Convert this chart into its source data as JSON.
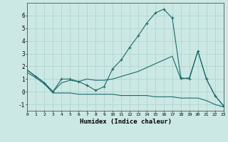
{
  "xlabel": "Humidex (Indice chaleur)",
  "background_color": "#cce8e4",
  "grid_color": "#b0d4cf",
  "line_color": "#1a6b6b",
  "series1_x": [
    0,
    1,
    2,
    3,
    4,
    5,
    6,
    7,
    8,
    9,
    10,
    11,
    12,
    13,
    14,
    15,
    16,
    17,
    18,
    19,
    20,
    21,
    22,
    23
  ],
  "series1_y": [
    1.7,
    1.2,
    0.7,
    0.0,
    1.0,
    1.0,
    0.8,
    0.5,
    0.1,
    0.4,
    1.8,
    2.5,
    3.5,
    4.4,
    5.4,
    6.2,
    6.5,
    5.8,
    1.1,
    1.0,
    3.2,
    1.0,
    -0.3,
    -1.1
  ],
  "series2_x": [
    0,
    1,
    2,
    3,
    4,
    5,
    6,
    7,
    8,
    9,
    10,
    11,
    12,
    13,
    14,
    15,
    16,
    17,
    18,
    19,
    20,
    21,
    22,
    23
  ],
  "series2_y": [
    1.7,
    1.2,
    0.7,
    0.0,
    0.7,
    0.9,
    0.8,
    1.0,
    0.9,
    0.9,
    1.0,
    1.2,
    1.4,
    1.6,
    1.9,
    2.2,
    2.5,
    2.8,
    1.0,
    1.1,
    3.2,
    1.0,
    -0.3,
    -1.1
  ],
  "series3_x": [
    0,
    1,
    2,
    3,
    4,
    5,
    6,
    7,
    8,
    9,
    10,
    11,
    12,
    13,
    14,
    15,
    16,
    17,
    18,
    19,
    20,
    21,
    22,
    23
  ],
  "series3_y": [
    1.5,
    1.1,
    0.6,
    -0.1,
    -0.1,
    -0.1,
    -0.2,
    -0.2,
    -0.2,
    -0.2,
    -0.2,
    -0.3,
    -0.3,
    -0.3,
    -0.3,
    -0.4,
    -0.4,
    -0.4,
    -0.5,
    -0.5,
    -0.5,
    -0.7,
    -1.0,
    -1.2
  ],
  "xlim": [
    0,
    23
  ],
  "ylim": [
    -1.5,
    7.0
  ],
  "yticks": [
    -1,
    0,
    1,
    2,
    3,
    4,
    5,
    6
  ],
  "xticks": [
    0,
    1,
    2,
    3,
    4,
    5,
    6,
    7,
    8,
    9,
    10,
    11,
    12,
    13,
    14,
    15,
    16,
    17,
    18,
    19,
    20,
    21,
    22,
    23
  ]
}
